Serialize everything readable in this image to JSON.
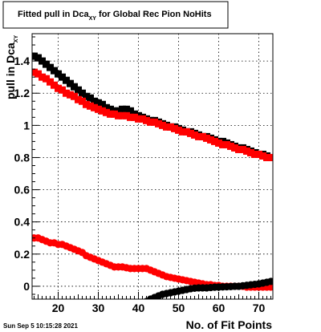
{
  "title": {
    "prefix": "Fitted pull in Dca",
    "subscript": "XY",
    "suffix": " for Global Rec Pion NoHits"
  },
  "timestamp": "Sun Sep  5 10:15:28 2021",
  "chart_data": {
    "type": "scatter",
    "xlabel": "No. of Fit Points",
    "ylabel_prefix": "pull in Dca",
    "ylabel_subscript": "XY",
    "xlim": [
      13.5,
      73.5
    ],
    "ylim": [
      -0.08,
      1.57
    ],
    "x_ticks": [
      20,
      30,
      40,
      50,
      60,
      70
    ],
    "y_ticks": [
      0,
      0.2,
      0.4,
      0.6,
      0.8,
      1,
      1.2,
      1.4
    ],
    "y_tick_labels": [
      "0",
      "0.2",
      "0.4",
      "0.6",
      "0.8",
      "1",
      "1.2",
      "1.4"
    ],
    "grid": true,
    "colors": {
      "black": "#000000",
      "red": "#ff0000"
    },
    "series": [
      {
        "marker": "square",
        "color": "#000000",
        "points": [
          [
            14,
            1.43
          ],
          [
            15,
            1.42
          ],
          [
            16,
            1.4
          ],
          [
            17,
            1.38
          ],
          [
            18,
            1.36
          ],
          [
            19,
            1.34
          ],
          [
            20,
            1.32
          ],
          [
            21,
            1.3
          ],
          [
            22,
            1.28
          ],
          [
            23,
            1.26
          ],
          [
            24,
            1.24
          ],
          [
            25,
            1.22
          ],
          [
            26,
            1.2
          ],
          [
            27,
            1.18
          ],
          [
            28,
            1.17
          ],
          [
            29,
            1.15
          ],
          [
            30,
            1.14
          ],
          [
            31,
            1.13
          ],
          [
            32,
            1.11
          ],
          [
            33,
            1.1
          ],
          [
            34,
            1.09
          ],
          [
            35,
            1.09
          ],
          [
            36,
            1.1
          ],
          [
            37,
            1.1
          ],
          [
            38,
            1.09
          ],
          [
            39,
            1.07
          ],
          [
            40,
            1.06
          ],
          [
            41,
            1.05
          ],
          [
            42,
            1.04
          ],
          [
            43,
            1.03
          ],
          [
            44,
            1.03
          ],
          [
            45,
            1.02
          ],
          [
            46,
            1.01
          ],
          [
            47,
            1.0
          ],
          [
            48,
            0.99
          ],
          [
            49,
            0.99
          ],
          [
            50,
            0.98
          ],
          [
            51,
            0.97
          ],
          [
            52,
            0.96
          ],
          [
            53,
            0.96
          ],
          [
            54,
            0.95
          ],
          [
            55,
            0.94
          ],
          [
            56,
            0.93
          ],
          [
            57,
            0.93
          ],
          [
            58,
            0.92
          ],
          [
            59,
            0.91
          ],
          [
            60,
            0.9
          ],
          [
            61,
            0.9
          ],
          [
            62,
            0.89
          ],
          [
            63,
            0.88
          ],
          [
            64,
            0.87
          ],
          [
            65,
            0.86
          ],
          [
            66,
            0.86
          ],
          [
            67,
            0.85
          ],
          [
            68,
            0.84
          ],
          [
            69,
            0.83
          ],
          [
            70,
            0.82
          ],
          [
            71,
            0.82
          ],
          [
            72,
            0.81
          ],
          [
            73,
            0.8
          ]
        ]
      },
      {
        "marker": "square",
        "color": "#ff0000",
        "points": [
          [
            14,
            1.33
          ],
          [
            15,
            1.32
          ],
          [
            16,
            1.3
          ],
          [
            17,
            1.29
          ],
          [
            18,
            1.27
          ],
          [
            19,
            1.25
          ],
          [
            20,
            1.23
          ],
          [
            21,
            1.22
          ],
          [
            22,
            1.2
          ],
          [
            23,
            1.19
          ],
          [
            24,
            1.18
          ],
          [
            25,
            1.16
          ],
          [
            26,
            1.15
          ],
          [
            27,
            1.13
          ],
          [
            28,
            1.12
          ],
          [
            29,
            1.11
          ],
          [
            30,
            1.1
          ],
          [
            31,
            1.09
          ],
          [
            32,
            1.08
          ],
          [
            33,
            1.07
          ],
          [
            34,
            1.07
          ],
          [
            35,
            1.06
          ],
          [
            36,
            1.06
          ],
          [
            37,
            1.06
          ],
          [
            38,
            1.05
          ],
          [
            39,
            1.05
          ],
          [
            40,
            1.04
          ],
          [
            41,
            1.04
          ],
          [
            42,
            1.03
          ],
          [
            43,
            1.02
          ],
          [
            44,
            1.02
          ],
          [
            45,
            1.01
          ],
          [
            46,
            1.0
          ],
          [
            47,
            0.99
          ],
          [
            48,
            0.99
          ],
          [
            49,
            0.98
          ],
          [
            50,
            0.97
          ],
          [
            51,
            0.96
          ],
          [
            52,
            0.96
          ],
          [
            53,
            0.95
          ],
          [
            54,
            0.94
          ],
          [
            55,
            0.93
          ],
          [
            56,
            0.93
          ],
          [
            57,
            0.92
          ],
          [
            58,
            0.91
          ],
          [
            59,
            0.9
          ],
          [
            60,
            0.89
          ],
          [
            61,
            0.88
          ],
          [
            62,
            0.88
          ],
          [
            63,
            0.87
          ],
          [
            64,
            0.86
          ],
          [
            65,
            0.85
          ],
          [
            66,
            0.85
          ],
          [
            67,
            0.84
          ],
          [
            68,
            0.83
          ],
          [
            69,
            0.82
          ],
          [
            70,
            0.82
          ],
          [
            71,
            0.81
          ],
          [
            72,
            0.8
          ],
          [
            73,
            0.8
          ]
        ]
      },
      {
        "marker": "circle",
        "color": "#ff0000",
        "points": [
          [
            14,
            0.3
          ],
          [
            15,
            0.3
          ],
          [
            16,
            0.29
          ],
          [
            17,
            0.28
          ],
          [
            18,
            0.27
          ],
          [
            19,
            0.27
          ],
          [
            20,
            0.26
          ],
          [
            21,
            0.26
          ],
          [
            22,
            0.25
          ],
          [
            23,
            0.24
          ],
          [
            24,
            0.23
          ],
          [
            25,
            0.22
          ],
          [
            26,
            0.21
          ],
          [
            27,
            0.19
          ],
          [
            28,
            0.18
          ],
          [
            29,
            0.17
          ],
          [
            30,
            0.16
          ],
          [
            31,
            0.15
          ],
          [
            32,
            0.14
          ],
          [
            33,
            0.13
          ],
          [
            34,
            0.12
          ],
          [
            35,
            0.12
          ],
          [
            36,
            0.12
          ],
          [
            37,
            0.115
          ],
          [
            38,
            0.11
          ],
          [
            39,
            0.11
          ],
          [
            40,
            0.11
          ],
          [
            41,
            0.11
          ],
          [
            42,
            0.11
          ],
          [
            43,
            0.1
          ],
          [
            44,
            0.09
          ],
          [
            45,
            0.08
          ],
          [
            46,
            0.07
          ],
          [
            47,
            0.06
          ],
          [
            48,
            0.055
          ],
          [
            49,
            0.05
          ],
          [
            50,
            0.045
          ],
          [
            51,
            0.04
          ],
          [
            52,
            0.035
          ],
          [
            53,
            0.03
          ],
          [
            54,
            0.025
          ],
          [
            55,
            0.02
          ],
          [
            56,
            0.015
          ],
          [
            57,
            0.01
          ],
          [
            58,
            0.01
          ],
          [
            59,
            0.005
          ],
          [
            60,
            0.005
          ],
          [
            61,
            0.0
          ],
          [
            62,
            0.0
          ],
          [
            63,
            0.0
          ],
          [
            64,
            0.0
          ],
          [
            65,
            0.0
          ],
          [
            66,
            0.0
          ],
          [
            67,
            -0.005
          ],
          [
            68,
            -0.005
          ],
          [
            69,
            -0.005
          ],
          [
            70,
            -0.005
          ],
          [
            71,
            -0.005
          ],
          [
            72,
            -0.005
          ],
          [
            73,
            -0.005
          ]
        ]
      },
      {
        "marker": "circle",
        "color": "#000000",
        "points": [
          [
            35,
            -0.155
          ],
          [
            36,
            -0.15
          ],
          [
            37,
            -0.145
          ],
          [
            38,
            -0.14
          ],
          [
            39,
            -0.13
          ],
          [
            40,
            -0.12
          ],
          [
            41,
            -0.11
          ],
          [
            42,
            -0.095
          ],
          [
            43,
            -0.08
          ],
          [
            44,
            -0.07
          ],
          [
            45,
            -0.06
          ],
          [
            46,
            -0.05
          ],
          [
            47,
            -0.045
          ],
          [
            48,
            -0.04
          ],
          [
            49,
            -0.035
          ],
          [
            50,
            -0.03
          ],
          [
            51,
            -0.025
          ],
          [
            52,
            -0.02
          ],
          [
            53,
            -0.015
          ],
          [
            54,
            -0.012
          ],
          [
            55,
            -0.01
          ],
          [
            56,
            -0.01
          ],
          [
            57,
            -0.01
          ],
          [
            58,
            -0.008
          ],
          [
            59,
            -0.006
          ],
          [
            60,
            -0.005
          ],
          [
            61,
            -0.004
          ],
          [
            62,
            -0.003
          ],
          [
            63,
            -0.002
          ],
          [
            64,
            0.0
          ],
          [
            65,
            0.0
          ],
          [
            66,
            0.003
          ],
          [
            67,
            0.006
          ],
          [
            68,
            0.009
          ],
          [
            69,
            0.012
          ],
          [
            70,
            0.015
          ],
          [
            71,
            0.02
          ],
          [
            72,
            0.025
          ],
          [
            73,
            0.03
          ]
        ]
      }
    ]
  }
}
